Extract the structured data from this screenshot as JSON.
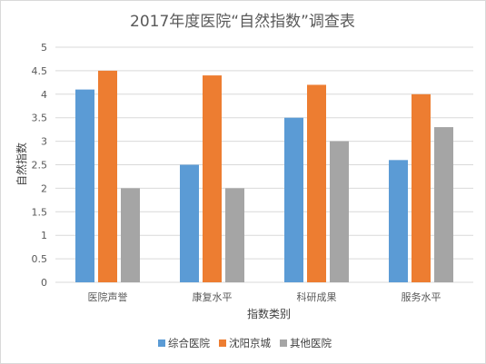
{
  "chart_data": {
    "type": "bar",
    "title": "2017年度医院“自然指数”调查表",
    "xlabel": "指数类别",
    "ylabel": "自然指数",
    "categories": [
      "医院声誉",
      "康复水平",
      "科研成果",
      "服务水平"
    ],
    "ylim": [
      0,
      5
    ],
    "yticks": [
      0,
      0.5,
      1,
      1.5,
      2,
      2.5,
      3,
      3.5,
      4,
      4.5,
      5
    ],
    "grid": true,
    "legend_position": "bottom",
    "series": [
      {
        "name": "综合医院",
        "color": "#5b9bd5",
        "values": [
          4.1,
          2.5,
          3.5,
          2.6
        ]
      },
      {
        "name": "沈阳京城",
        "color": "#ed7d31",
        "values": [
          4.5,
          4.4,
          4.2,
          4.0
        ]
      },
      {
        "name": "其他医院",
        "color": "#a5a5a5",
        "values": [
          2.0,
          2.0,
          3.0,
          3.3
        ]
      }
    ]
  }
}
